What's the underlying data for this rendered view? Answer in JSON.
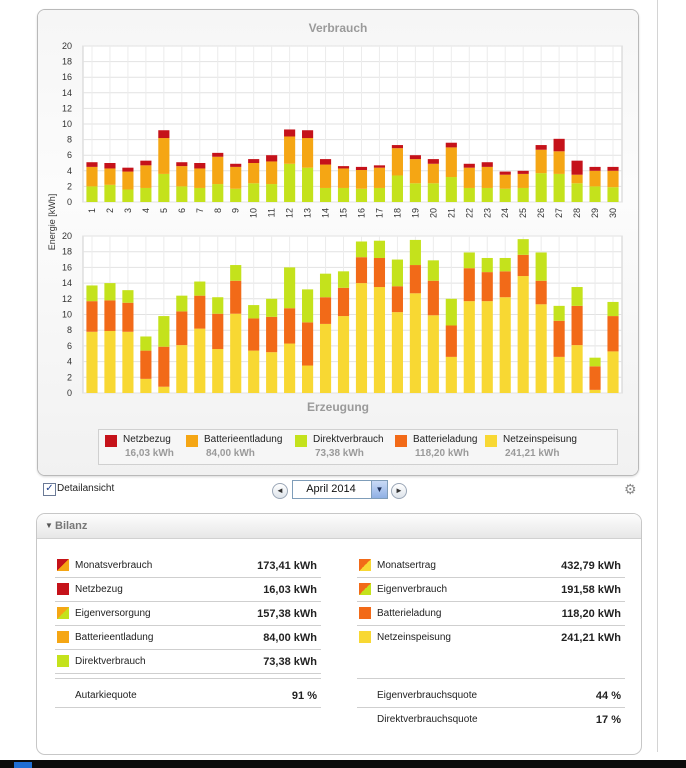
{
  "colors": {
    "netzbezug": "#c5121a",
    "batterieentladung": "#f5a614",
    "direktverbrauch": "#c4e21c",
    "batterieladung": "#f26a18",
    "netzeinspeisung": "#f8d833"
  },
  "chart_data": [
    {
      "type": "bar",
      "title": "Verbrauch",
      "ylabel": "Energie [kWh]",
      "ylim": [
        0,
        20
      ],
      "y_ticks": [
        "0",
        "2",
        "4",
        "6",
        "8",
        "10",
        "12",
        "14",
        "16",
        "18",
        "20"
      ],
      "categories": [
        "1",
        "2",
        "3",
        "4",
        "5",
        "6",
        "7",
        "8",
        "9",
        "10",
        "11",
        "12",
        "13",
        "14",
        "15",
        "16",
        "17",
        "18",
        "19",
        "20",
        "21",
        "22",
        "23",
        "24",
        "25",
        "26",
        "27",
        "28",
        "29",
        "30"
      ],
      "stacked": true,
      "grid": true,
      "series": [
        {
          "name": "Direktverbrauch",
          "color": "#c4e21c",
          "values": [
            2.0,
            2.2,
            1.6,
            1.8,
            3.6,
            2.0,
            1.8,
            2.3,
            1.7,
            2.4,
            2.3,
            4.9,
            4.4,
            1.8,
            1.8,
            1.7,
            1.8,
            3.4,
            2.4,
            2.4,
            3.2,
            1.8,
            1.8,
            1.7,
            1.8,
            3.7,
            3.6,
            2.4,
            2.0,
            1.9
          ]
        },
        {
          "name": "Batterieentladung",
          "color": "#f5a614",
          "values": [
            2.5,
            2.1,
            2.3,
            2.9,
            4.6,
            2.6,
            2.5,
            3.5,
            2.8,
            2.6,
            2.9,
            3.5,
            3.8,
            3.0,
            2.5,
            2.4,
            2.6,
            3.5,
            3.1,
            2.5,
            3.8,
            2.6,
            2.7,
            1.8,
            1.8,
            3.0,
            2.9,
            1.1,
            2.0,
            2.1
          ]
        },
        {
          "name": "Netzbezug",
          "color": "#c5121a",
          "values": [
            0.6,
            0.7,
            0.5,
            0.6,
            1.0,
            0.5,
            0.7,
            0.5,
            0.4,
            0.5,
            0.8,
            0.9,
            1.0,
            0.7,
            0.3,
            0.4,
            0.3,
            0.4,
            0.5,
            0.6,
            0.6,
            0.5,
            0.6,
            0.4,
            0.4,
            0.6,
            1.6,
            1.8,
            0.5,
            0.5
          ]
        }
      ]
    },
    {
      "type": "bar",
      "title": "Erzeugung",
      "ylabel": "Energie [kWh]",
      "ylim": [
        0,
        20
      ],
      "y_ticks": [
        "0",
        "2",
        "4",
        "6",
        "8",
        "10",
        "12",
        "14",
        "16",
        "18",
        "20"
      ],
      "categories": [
        "1",
        "2",
        "3",
        "4",
        "5",
        "6",
        "7",
        "8",
        "9",
        "10",
        "11",
        "12",
        "13",
        "14",
        "15",
        "16",
        "17",
        "18",
        "19",
        "20",
        "21",
        "22",
        "23",
        "24",
        "25",
        "26",
        "27",
        "28",
        "29",
        "30"
      ],
      "stacked": true,
      "grid": true,
      "series": [
        {
          "name": "Netzeinspeisung",
          "color": "#f8d833",
          "values": [
            7.8,
            7.9,
            7.8,
            1.8,
            0.8,
            6.1,
            8.2,
            5.6,
            10.1,
            5.4,
            5.2,
            6.3,
            3.5,
            8.8,
            9.8,
            14.0,
            13.5,
            10.3,
            12.7,
            9.9,
            4.6,
            11.7,
            11.7,
            12.2,
            14.9,
            11.3,
            4.6,
            6.1,
            0.4,
            5.3
          ]
        },
        {
          "name": "Batterieladung",
          "color": "#f26a18",
          "values": [
            3.9,
            3.9,
            3.7,
            3.6,
            5.1,
            4.3,
            4.2,
            4.5,
            4.2,
            4.1,
            4.5,
            4.5,
            5.5,
            3.4,
            3.6,
            3.3,
            3.7,
            3.3,
            3.6,
            4.4,
            4.0,
            4.2,
            3.7,
            3.3,
            2.7,
            3.0,
            4.6,
            5.0,
            3.0,
            4.5
          ]
        },
        {
          "name": "Direktverbrauch",
          "color": "#c4e21c",
          "values": [
            2.0,
            2.2,
            1.6,
            1.8,
            3.9,
            2.0,
            1.8,
            2.1,
            2.0,
            1.7,
            2.3,
            5.2,
            4.2,
            3.0,
            2.1,
            2.0,
            2.2,
            3.4,
            3.2,
            2.6,
            3.4,
            2.0,
            1.8,
            1.7,
            2.0,
            3.6,
            1.9,
            2.4,
            1.1,
            1.8
          ]
        }
      ]
    }
  ],
  "legend": [
    {
      "label": "Netzbezug",
      "value": "16,03 kWh",
      "color": "#c5121a"
    },
    {
      "label": "Batterieentladung",
      "value": "84,00 kWh",
      "color": "#f5a614"
    },
    {
      "label": "Direktverbrauch",
      "value": "73,38 kWh",
      "color": "#c4e21c"
    },
    {
      "label": "Batterieladung",
      "value": "118,20 kWh",
      "color": "#f26a18"
    },
    {
      "label": "Netzeinspeisung",
      "value": "241,21 kWh",
      "color": "#f8d833"
    }
  ],
  "controls": {
    "detail_checked": true,
    "detail_check_glyph": "✓",
    "detail_label": "Detailansicht",
    "month": "April 2014",
    "prev_glyph": "◄",
    "next_glyph": "►",
    "dropdown_glyph": "▼",
    "settings_icon": "gear-icon"
  },
  "bilanz": {
    "title": "Bilanz",
    "left": [
      {
        "label": "Monatsverbrauch",
        "value": "173,41 kWh",
        "icon": "split-red-orange",
        "colors": [
          "#c5121a",
          "#f5a614"
        ]
      },
      {
        "label": "Netzbezug",
        "value": "16,03 kWh",
        "icon": "solid",
        "colors": [
          "#c5121a"
        ]
      },
      {
        "label": "Eigenversorgung",
        "value": "157,38 kWh",
        "icon": "split-orange-green",
        "colors": [
          "#f5a614",
          "#c4e21c"
        ]
      },
      {
        "label": "Batterieentladung",
        "value": "84,00 kWh",
        "icon": "solid",
        "colors": [
          "#f5a614"
        ]
      },
      {
        "label": "Direktverbrauch",
        "value": "73,38 kWh",
        "icon": "solid",
        "colors": [
          "#c4e21c"
        ]
      }
    ],
    "right": [
      {
        "label": "Monatsertrag",
        "value": "432,79 kWh",
        "icon": "split-orange-yellow",
        "colors": [
          "#f26a18",
          "#f8d833"
        ]
      },
      {
        "label": "Eigenverbrauch",
        "value": "191,58 kWh",
        "icon": "split-orange-green",
        "colors": [
          "#f26a18",
          "#c4e21c"
        ]
      },
      {
        "label": "Batterieladung",
        "value": "118,20 kWh",
        "icon": "solid",
        "colors": [
          "#f26a18"
        ]
      },
      {
        "label": "Netzeinspeisung",
        "value": "241,21 kWh",
        "icon": "solid",
        "colors": [
          "#f8d833"
        ]
      }
    ],
    "quotes_left": [
      {
        "label": "Autarkiequote",
        "value": "91 %"
      }
    ],
    "quotes_right": [
      {
        "label": "Eigenverbrauchsquote",
        "value": "44 %"
      },
      {
        "label": "Direktverbrauchsquote",
        "value": "17 %"
      }
    ]
  }
}
